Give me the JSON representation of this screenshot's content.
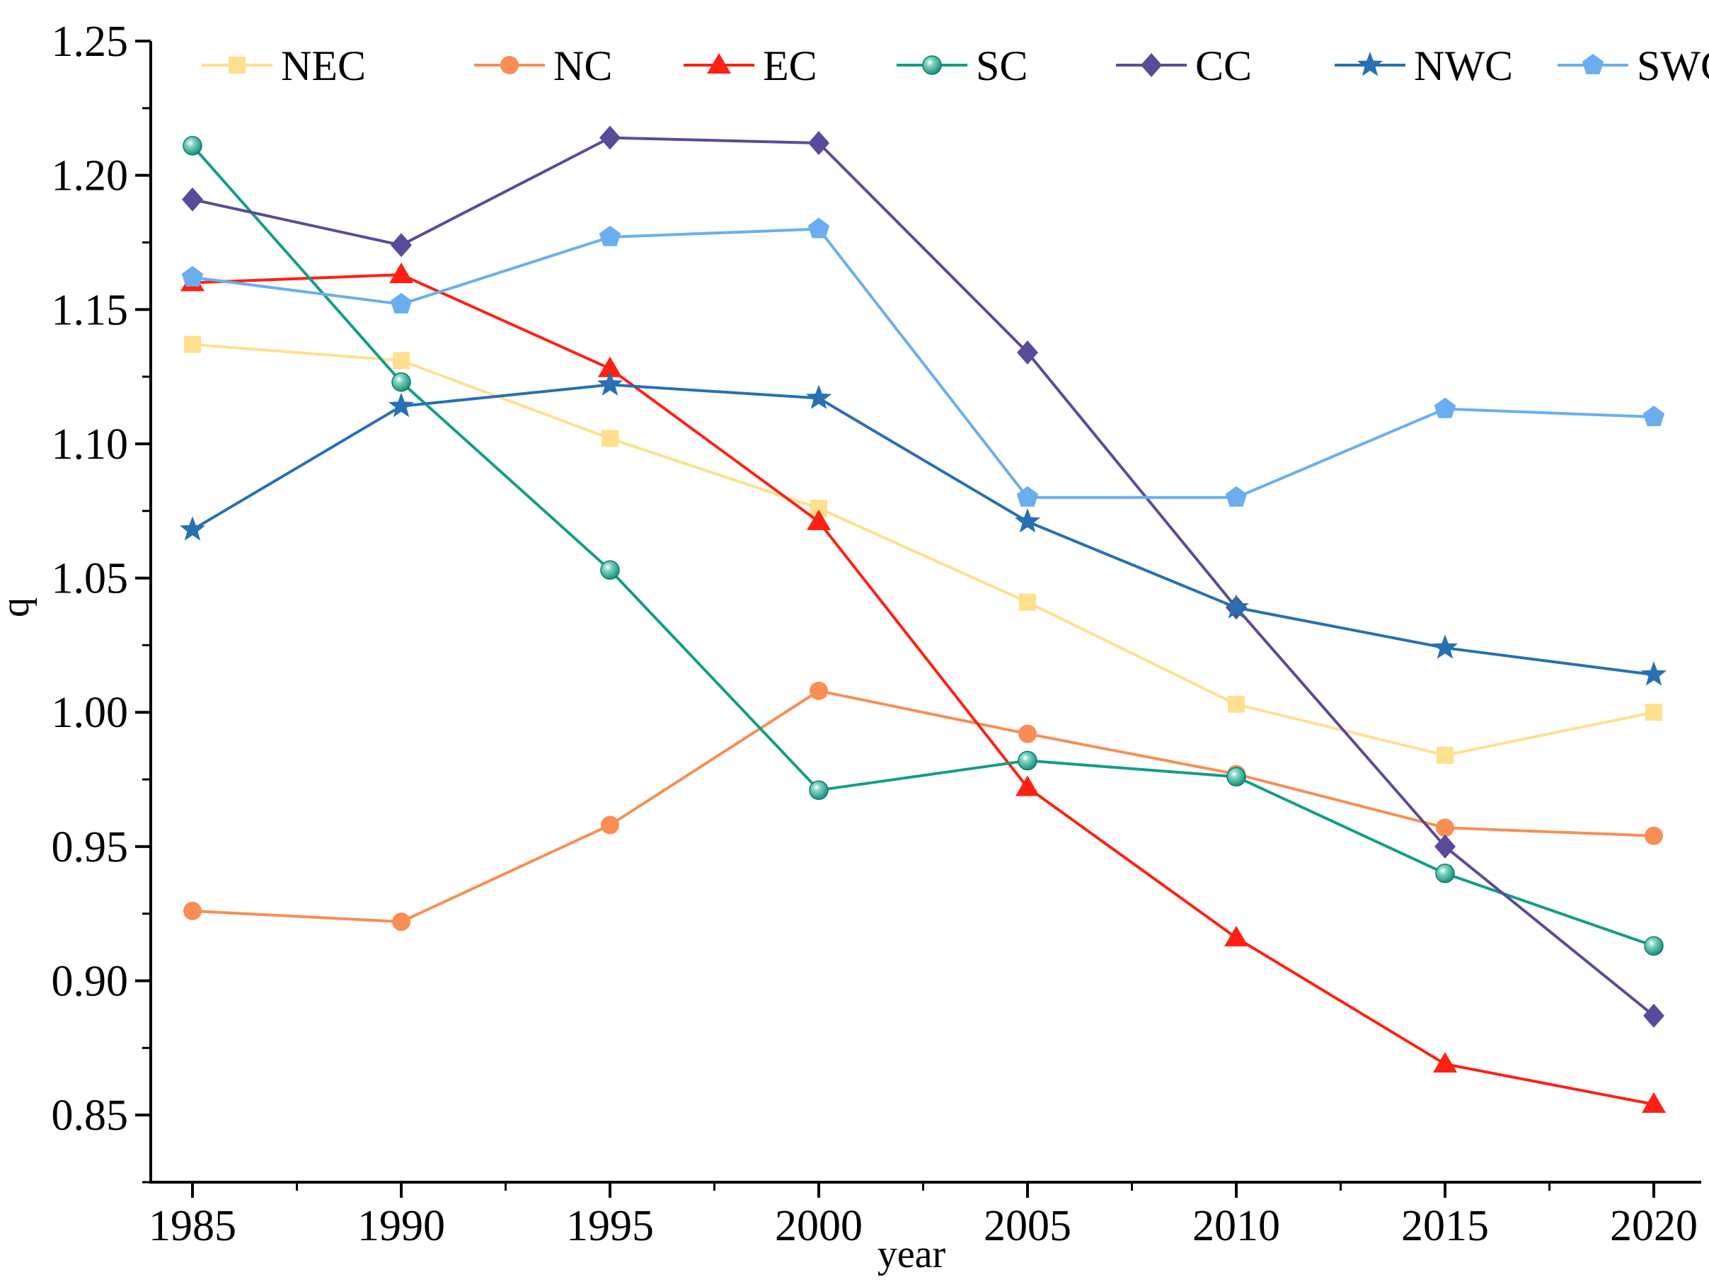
{
  "chart_data": {
    "type": "line",
    "title": "",
    "xlabel": "year",
    "ylabel": "q",
    "x": [
      1985,
      1990,
      1995,
      2000,
      2005,
      2010,
      2015,
      2020
    ],
    "xticks": [
      "1985",
      "1990",
      "1995",
      "2000",
      "2005",
      "2010",
      "2015",
      "2020"
    ],
    "yticks": [
      "0.85",
      "0.90",
      "0.95",
      "1.00",
      "1.05",
      "1.10",
      "1.15",
      "1.20",
      "1.25"
    ],
    "ylim": [
      0.825,
      1.25
    ],
    "grid": false,
    "legend_position": "top",
    "series": [
      {
        "name": "NEC",
        "color": "#FFE08E",
        "marker": "square",
        "values": [
          1.137,
          1.131,
          1.102,
          1.076,
          1.041,
          1.003,
          0.984,
          1.0
        ]
      },
      {
        "name": "NC",
        "color": "#F88E54",
        "marker": "circle",
        "values": [
          0.926,
          0.922,
          0.958,
          1.008,
          0.992,
          0.977,
          0.957,
          0.954
        ]
      },
      {
        "name": "EC",
        "color": "#FF2013",
        "marker": "triangle",
        "values": [
          1.16,
          1.163,
          1.128,
          1.071,
          0.972,
          0.916,
          0.869,
          0.854
        ]
      },
      {
        "name": "SC",
        "color": "#139D87",
        "marker": "sphere",
        "values": [
          1.211,
          1.123,
          1.053,
          0.971,
          0.982,
          0.976,
          0.94,
          0.913
        ]
      },
      {
        "name": "CC",
        "color": "#5A4A9A",
        "marker": "diamond",
        "values": [
          1.191,
          1.174,
          1.214,
          1.212,
          1.134,
          1.039,
          0.95,
          0.887
        ]
      },
      {
        "name": "NWC",
        "color": "#2770B2",
        "marker": "star",
        "values": [
          1.068,
          1.114,
          1.122,
          1.117,
          1.071,
          1.039,
          1.024,
          1.014
        ]
      },
      {
        "name": "SWC",
        "color": "#6AAEF0",
        "marker": "pentagon",
        "values": [
          1.162,
          1.152,
          1.177,
          1.18,
          1.08,
          1.08,
          1.113,
          1.11
        ]
      }
    ]
  }
}
